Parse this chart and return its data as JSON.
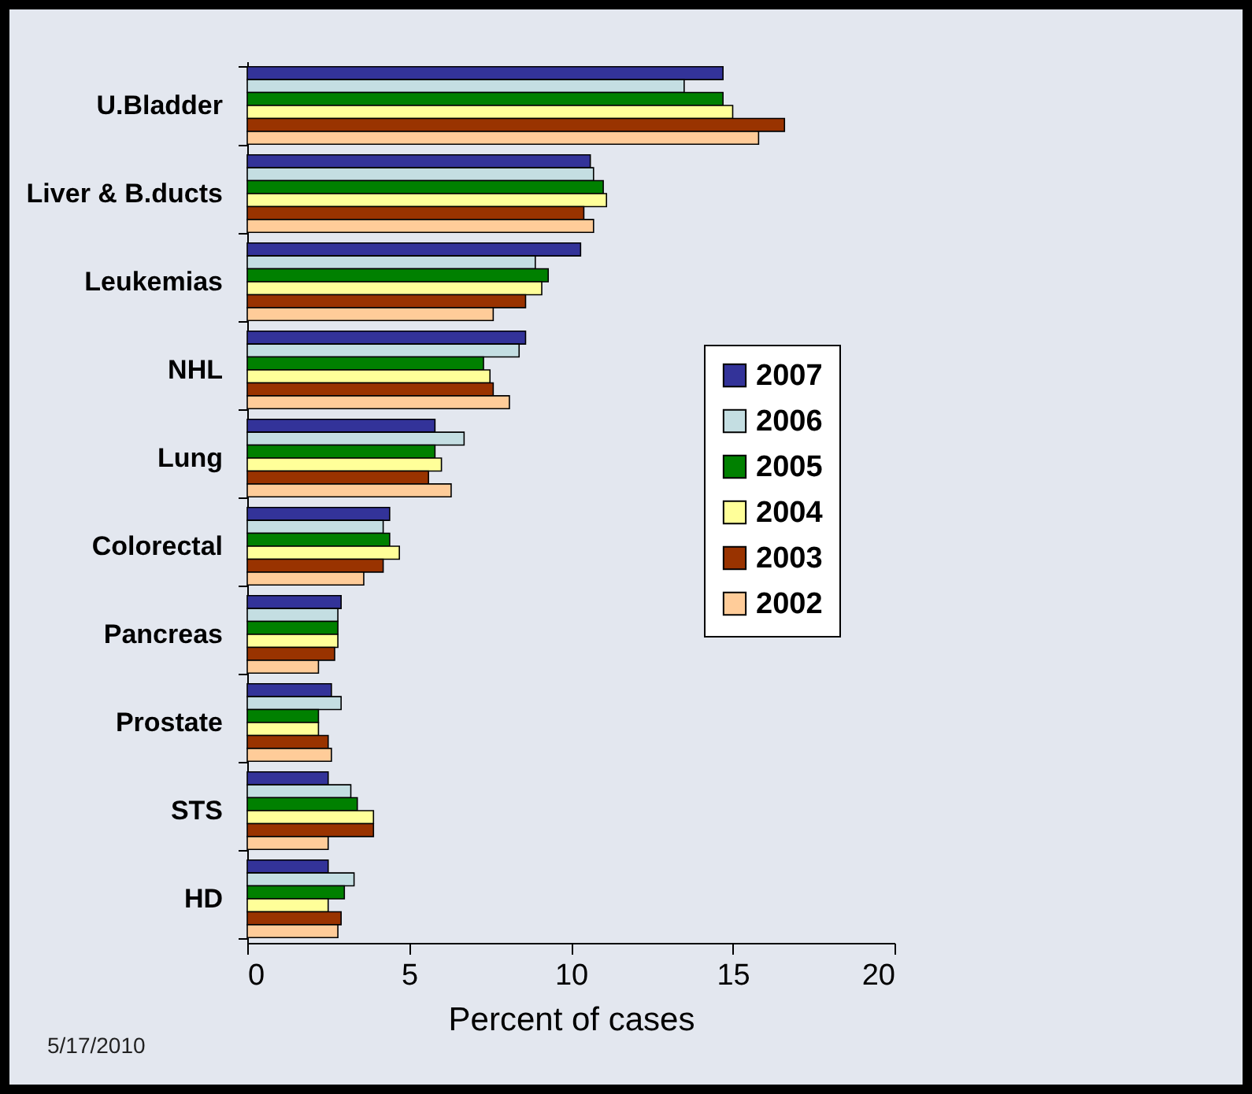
{
  "chart_data": {
    "type": "bar",
    "orientation": "horizontal",
    "xlabel": "Percent of cases",
    "categories": [
      "U.Bladder",
      "Liver & B.ducts",
      "Leukemias",
      "NHL",
      "Lung",
      "Colorectal",
      "Pancreas",
      "Prostate",
      "STS",
      "HD"
    ],
    "series": [
      {
        "name": "2007",
        "color": "#333399",
        "values": [
          14.7,
          10.6,
          10.3,
          8.6,
          5.8,
          4.4,
          2.9,
          2.6,
          2.5,
          2.5
        ]
      },
      {
        "name": "2006",
        "color": "#c4dee2",
        "values": [
          13.5,
          10.7,
          8.9,
          8.4,
          6.7,
          4.2,
          2.8,
          2.9,
          3.2,
          3.3
        ]
      },
      {
        "name": "2005",
        "color": "#008000",
        "values": [
          14.7,
          11.0,
          9.3,
          7.3,
          5.8,
          4.4,
          2.8,
          2.2,
          3.4,
          3.0
        ]
      },
      {
        "name": "2004",
        "color": "#ffff99",
        "values": [
          15.0,
          11.1,
          9.1,
          7.5,
          6.0,
          4.7,
          2.8,
          2.2,
          3.9,
          2.5
        ]
      },
      {
        "name": "2003",
        "color": "#993300",
        "values": [
          16.6,
          10.4,
          8.6,
          7.6,
          5.6,
          4.2,
          2.7,
          2.5,
          3.9,
          2.9
        ]
      },
      {
        "name": "2002",
        "color": "#ffcc99",
        "values": [
          15.8,
          10.7,
          7.6,
          8.1,
          6.3,
          3.6,
          2.2,
          2.6,
          2.5,
          2.8
        ]
      }
    ],
    "xlim": [
      0,
      20
    ],
    "xticks": [
      0,
      5,
      10,
      15,
      20
    ],
    "legend": "right",
    "grid": false,
    "annotations": [
      "5/17/2010"
    ]
  }
}
